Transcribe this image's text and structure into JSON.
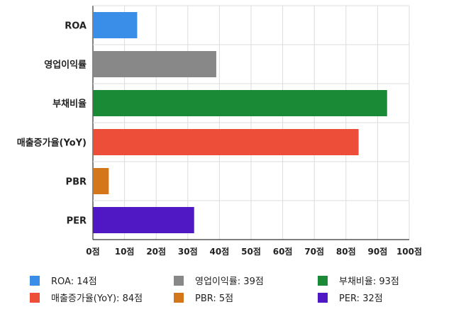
{
  "chart_data": {
    "type": "bar",
    "orientation": "horizontal",
    "categories": [
      "ROA",
      "영업이익률",
      "부채비율",
      "매출증가율(YoY)",
      "PBR",
      "PER"
    ],
    "values": [
      14,
      39,
      93,
      84,
      5,
      32
    ],
    "colors": [
      "#3b8ee8",
      "#888888",
      "#1a8a37",
      "#ec4e39",
      "#d4761a",
      "#5018c4"
    ],
    "xlim": [
      0,
      100
    ],
    "ticks": [
      0,
      10,
      20,
      30,
      40,
      50,
      60,
      70,
      80,
      90,
      100
    ],
    "tick_suffix": "점",
    "grid": true,
    "legend_position": "bottom",
    "legend": [
      "ROA: 14점",
      "영업이익률: 39점",
      "부채비율: 93점",
      "매출증가율(YoY): 84점",
      "PBR: 5점",
      "PER: 32점"
    ]
  }
}
